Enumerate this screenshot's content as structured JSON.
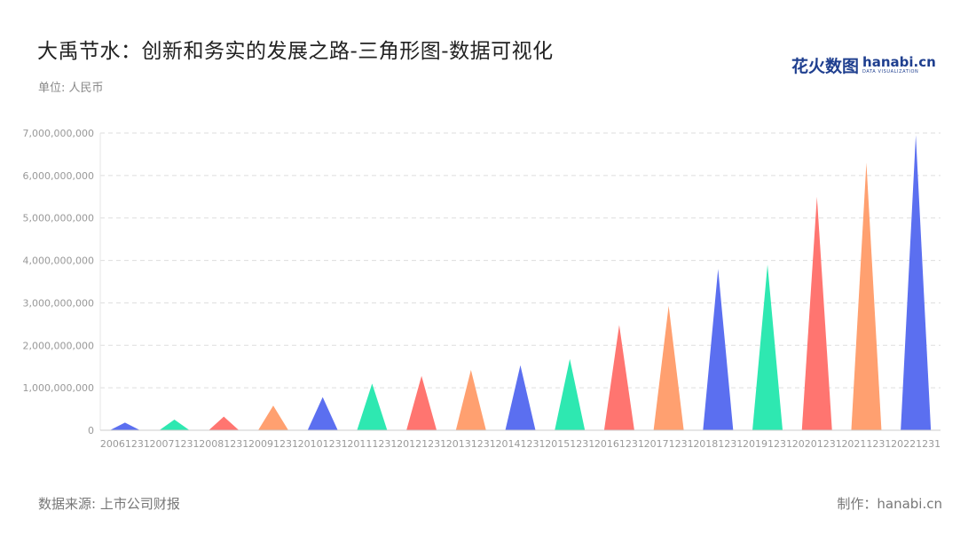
{
  "header": {
    "title": "大禹节水：创新和务实的发展之路-三角形图-数据可视化",
    "unit": "单位: 人民币"
  },
  "logo": {
    "cn": "花火数图",
    "en": "hanabi.cn",
    "sub": "DATA VISUALIZATION"
  },
  "footer": {
    "source": "数据来源: 上市公司财报",
    "maker": "制作：hanabi.cn"
  },
  "colors": {
    "palette": [
      "#5b6ff0",
      "#2ee8b1",
      "#ff7570",
      "#ffa070"
    ]
  },
  "chart_data": {
    "type": "bar",
    "bar_shape": "triangle",
    "categories": [
      "20061231",
      "20071231",
      "20081231",
      "20091231",
      "20101231",
      "20111231",
      "20121231",
      "20131231",
      "20141231",
      "20151231",
      "20161231",
      "20171231",
      "20181231",
      "20191231",
      "20201231",
      "20211231",
      "20221231"
    ],
    "values": [
      180000000,
      250000000,
      320000000,
      580000000,
      780000000,
      1100000000,
      1280000000,
      1420000000,
      1530000000,
      1680000000,
      2480000000,
      2930000000,
      3800000000,
      3900000000,
      5500000000,
      6300000000,
      6950000000
    ],
    "ylim": [
      0,
      7000000000
    ],
    "yticks": [
      "0",
      "1,000,000,000",
      "2,000,000,000",
      "3,000,000,000",
      "4,000,000,000",
      "5,000,000,000",
      "6,000,000,000",
      "7,000,000,000"
    ],
    "grid": true,
    "xlabel": "",
    "ylabel": ""
  }
}
